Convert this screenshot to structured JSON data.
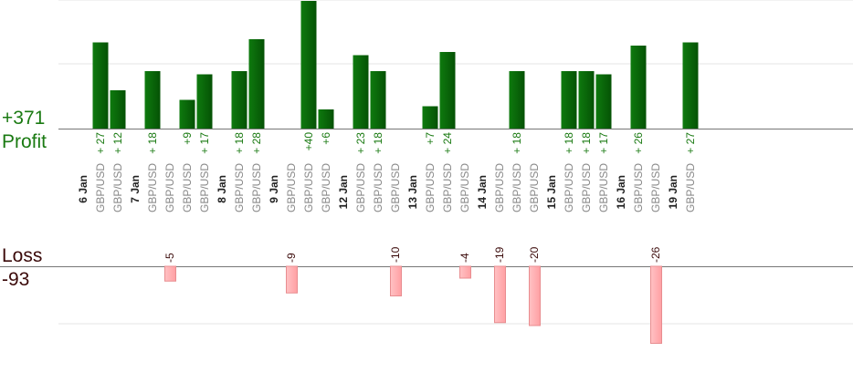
{
  "summary": {
    "profit_total": "+371",
    "profit_label": "Profit",
    "loss_label": "Loss",
    "loss_total": "-93"
  },
  "colors": {
    "profit_bar": "#0b6b0b",
    "profit_text": "#1a7a12",
    "loss_bar": "#ffb3b5",
    "loss_bar_edge": "#e88d90",
    "loss_text": "#3b0a0a",
    "date_text": "#222222",
    "pair_text": "#888888",
    "grid": "#e6e6e6",
    "axis": "#777777"
  },
  "chart_data": {
    "type": "bar",
    "grid": true,
    "profit_ylim": [
      0,
      40
    ],
    "loss_ylim": [
      -35,
      0
    ],
    "trades": [
      {
        "pair": "GBP/USD",
        "value": 27,
        "label": "+ 27"
      },
      {
        "pair": "GBP/USD",
        "value": 12,
        "label": "+ 12"
      },
      {
        "pair": "GBP/USD",
        "value": 18,
        "label": "+ 18"
      },
      {
        "pair": "GBP/USD",
        "value": -5,
        "label": "-5"
      },
      {
        "pair": "GBP/USD",
        "value": 9,
        "label": "+9"
      },
      {
        "pair": "GBP/USD",
        "value": 17,
        "label": "+ 17"
      },
      {
        "pair": "GBP/USD",
        "value": 18,
        "label": "+ 18"
      },
      {
        "pair": "GBP/USD",
        "value": 28,
        "label": "+ 28"
      },
      {
        "pair": "GBP/USD",
        "value": -9,
        "label": "-9"
      },
      {
        "pair": "GBP/USD",
        "value": 40,
        "label": "+40"
      },
      {
        "pair": "GBP/USD",
        "value": 6,
        "label": "+6"
      },
      {
        "pair": "GBP/USD",
        "value": 23,
        "label": "+ 23"
      },
      {
        "pair": "GBP/USD",
        "value": 18,
        "label": "+ 18"
      },
      {
        "pair": "GBP/USD",
        "value": -10,
        "label": "-10"
      },
      {
        "pair": "GBP/USD",
        "value": 7,
        "label": "+7"
      },
      {
        "pair": "GBP/USD",
        "value": 24,
        "label": "+ 24"
      },
      {
        "pair": "GBP/USD",
        "value": -4,
        "label": "-4"
      },
      {
        "pair": "GBP/USD",
        "value": -19,
        "label": "-19"
      },
      {
        "pair": "GBP/USD",
        "value": 18,
        "label": "+ 18"
      },
      {
        "pair": "GBP/USD",
        "value": -20,
        "label": "-20"
      },
      {
        "pair": "GBP/USD",
        "value": 18,
        "label": "+ 18"
      },
      {
        "pair": "GBP/USD",
        "value": 18,
        "label": "+ 18"
      },
      {
        "pair": "GBP/USD",
        "value": 17,
        "label": "+ 17"
      },
      {
        "pair": "GBP/USD",
        "value": 26,
        "label": "+ 26"
      },
      {
        "pair": "GBP/USD",
        "value": -26,
        "label": "-26"
      },
      {
        "pair": "GBP/USD",
        "value": 27,
        "label": "+ 27"
      }
    ],
    "dates": [
      {
        "label": "6 Jan",
        "first_trade": 0
      },
      {
        "label": "7 Jan",
        "first_trade": 2
      },
      {
        "label": "8 Jan",
        "first_trade": 6
      },
      {
        "label": "9 Jan",
        "first_trade": 8
      },
      {
        "label": "12 Jan",
        "first_trade": 11
      },
      {
        "label": "13 Jan",
        "first_trade": 14
      },
      {
        "label": "14 Jan",
        "first_trade": 17
      },
      {
        "label": "15 Jan",
        "first_trade": 20
      },
      {
        "label": "16 Jan",
        "first_trade": 23
      },
      {
        "label": "19 Jan",
        "first_trade": 25
      }
    ]
  }
}
